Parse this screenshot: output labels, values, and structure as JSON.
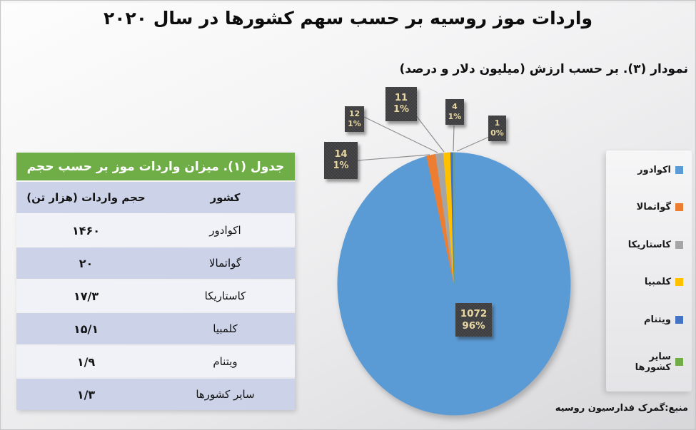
{
  "title": "واردات موز روسیه بر حسب سهم کشورها در سال ۲۰۲۰",
  "subtitle": "نمودار (۳). بر حسب ارزش (میلیون دلار و درصد)",
  "source": "منبع:گمرک فدارسیون روسیه",
  "table": {
    "title": "جدول (۱). میزان واردات موز بر حسب حجم",
    "columns": [
      "کشور",
      "حجم واردات (هزار تن)"
    ],
    "rows": [
      {
        "country": "اکوادور",
        "volume": "۱۴۶۰"
      },
      {
        "country": "گواتمالا",
        "volume": "۲۰"
      },
      {
        "country": "کاستاریکا",
        "volume": "۱۷/۳"
      },
      {
        "country": "کلمبیا",
        "volume": "۱۵/۱"
      },
      {
        "country": "ویتنام",
        "volume": "۱/۹"
      },
      {
        "country": "سایر کشورها",
        "volume": "۱/۳"
      }
    ]
  },
  "chart_data": {
    "type": "pie",
    "title": "نمودار (۳). بر حسب ارزش (میلیون دلار و درصد)",
    "categories": [
      "اکوادور",
      "گواتمالا",
      "کاستاریکا",
      "کلمبیا",
      "ویتنام",
      "سایر کشورها"
    ],
    "values": [
      1072,
      14,
      12,
      11,
      4,
      1
    ],
    "labels": [
      {
        "value": "1072",
        "pct": "96%"
      },
      {
        "value": "14",
        "pct": "1%"
      },
      {
        "value": "12",
        "pct": "1%"
      },
      {
        "value": "11",
        "pct": "1%"
      },
      {
        "value": "4",
        "pct": "1%"
      },
      {
        "value": "1",
        "pct": "0%"
      }
    ],
    "colors": [
      "#5B9BD5",
      "#ED7D31",
      "#A5A5A5",
      "#FFC000",
      "#4472C4",
      "#70AD47"
    ],
    "legend_position": "right",
    "start_angle_deg": 0,
    "direction": "clockwise"
  },
  "colors": {
    "table_header_bg": "#6FAD47",
    "table_row_alt": "#CCD3E9",
    "table_row_light": "#F1F2F8",
    "label_box_bg": "#3B3B3D",
    "label_text": "#E7D7A3",
    "leader_line": "#8F8F8F"
  }
}
